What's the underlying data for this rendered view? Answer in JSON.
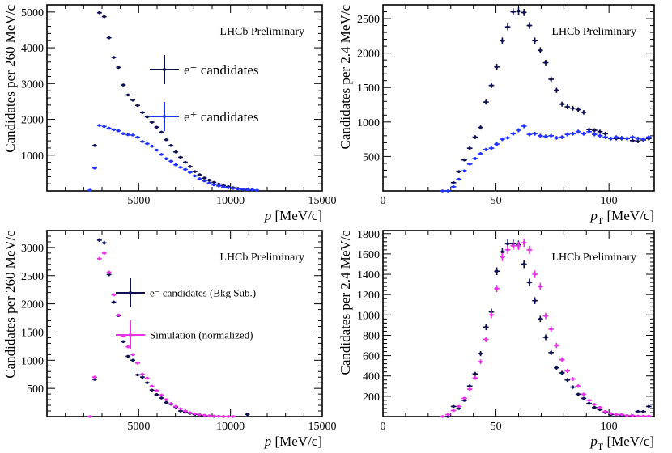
{
  "colors": {
    "navy": "#0f1150",
    "blue": "#2132ff",
    "magenta": "#e633e6"
  },
  "chart_data": [
    {
      "type": "scatter",
      "title": "",
      "annotation": "LHCb Preliminary",
      "xlabel": "p",
      "xunit": " [MeV/c]",
      "ylabel": "Candidates per 260 MeV/c",
      "xlim": [
        0,
        15000
      ],
      "ylim": [
        0,
        5200
      ],
      "xticks": [
        5000,
        10000,
        15000
      ],
      "yticks": [
        1000,
        2000,
        3000,
        4000,
        5000
      ],
      "legend": {
        "position": "top-right",
        "size": "large"
      },
      "series": [
        {
          "name": "e⁻ candidates",
          "color": "#0f1150",
          "x": [
            2600,
            2860,
            3120,
            3380,
            3640,
            3900,
            4160,
            4420,
            4680,
            4940,
            5200,
            5460,
            5720,
            5980,
            6240,
            6500,
            6760,
            7020,
            7280,
            7540,
            7800,
            8060,
            8320,
            8580,
            8840,
            9100,
            9360,
            9620,
            9880,
            10140,
            10400,
            10660,
            10920,
            11180
          ],
          "y": [
            1270,
            4980,
            4870,
            4280,
            3730,
            3450,
            2960,
            2680,
            2540,
            2390,
            2190,
            2070,
            1920,
            1780,
            1640,
            1430,
            1270,
            1090,
            940,
            800,
            680,
            540,
            450,
            360,
            300,
            240,
            190,
            150,
            120,
            90,
            70,
            50,
            40,
            30
          ]
        },
        {
          "name": "e⁺ candidates",
          "color": "#2132ff",
          "x": [
            2340,
            2600,
            2860,
            3120,
            3380,
            3640,
            3900,
            4160,
            4420,
            4680,
            4940,
            5200,
            5460,
            5720,
            5980,
            6240,
            6500,
            6760,
            7020,
            7280,
            7540,
            7800,
            8060,
            8320,
            8580,
            8840,
            9100,
            9360,
            9620,
            9880,
            10140,
            10400,
            10660,
            10920,
            11180,
            11440
          ],
          "y": [
            20,
            640,
            1830,
            1800,
            1750,
            1710,
            1680,
            1600,
            1570,
            1560,
            1500,
            1380,
            1320,
            1250,
            1140,
            1020,
            900,
            830,
            730,
            660,
            600,
            520,
            420,
            340,
            280,
            220,
            170,
            140,
            110,
            90,
            70,
            55,
            45,
            35,
            30,
            20
          ]
        }
      ]
    },
    {
      "type": "scatter",
      "title": "",
      "annotation": "LHCb Preliminary",
      "xlabel": "p",
      "xsub": "T",
      "xunit": " [MeV/c]",
      "ylabel": "Candidates per 2.4 MeV/c",
      "xlim": [
        0,
        120
      ],
      "ylim": [
        0,
        2700
      ],
      "xticks": [
        0,
        50,
        100
      ],
      "yticks": [
        500,
        1000,
        1500,
        2000,
        2500
      ],
      "series": [
        {
          "name": "e⁻ candidates",
          "color": "#0f1150",
          "x": [
            28.8,
            31.2,
            33.6,
            36,
            38.4,
            40.8,
            43.2,
            45.6,
            48,
            50.4,
            52.8,
            55.2,
            57.6,
            60,
            62.4,
            64.8,
            67.2,
            69.6,
            72,
            74.4,
            76.8,
            79.2,
            81.6,
            84,
            86.4,
            88.8,
            91.2,
            93.6,
            96,
            98.4,
            100.8,
            103.2,
            105.6,
            108,
            110.4,
            112.8,
            115.2,
            117.6
          ],
          "y": [
            0,
            120,
            280,
            450,
            620,
            780,
            920,
            1290,
            1530,
            1800,
            2180,
            2380,
            2600,
            2610,
            2590,
            2400,
            2180,
            2040,
            1860,
            1620,
            1460,
            1260,
            1220,
            1200,
            1180,
            1140,
            890,
            880,
            860,
            830,
            760,
            760,
            760,
            760,
            730,
            720,
            740,
            760
          ]
        },
        {
          "name": "e⁺ candidates",
          "color": "#2132ff",
          "x": [
            26.4,
            28.8,
            31.2,
            33.6,
            36,
            38.4,
            40.8,
            43.2,
            45.6,
            48,
            50.4,
            52.8,
            55.2,
            57.6,
            60,
            62.4,
            64.8,
            67.2,
            69.6,
            72,
            74.4,
            76.8,
            79.2,
            81.6,
            84,
            86.4,
            88.8,
            91.2,
            93.6,
            96,
            98.4,
            100.8,
            103.2,
            105.6,
            108,
            110.4,
            112.8,
            115.2,
            117.6
          ],
          "y": [
            0,
            0,
            60,
            170,
            290,
            390,
            470,
            540,
            600,
            620,
            680,
            750,
            770,
            830,
            880,
            940,
            820,
            830,
            800,
            790,
            800,
            770,
            780,
            820,
            830,
            860,
            830,
            860,
            820,
            800,
            780,
            760,
            780,
            770,
            760,
            780,
            760,
            750,
            780
          ]
        }
      ]
    },
    {
      "type": "scatter",
      "title": "",
      "annotation": "LHCb Preliminary",
      "xlabel": "p",
      "xunit": " [MeV/c]",
      "ylabel": "Candidates per 260 MeV/c",
      "xlim": [
        0,
        15000
      ],
      "ylim": [
        0,
        3300
      ],
      "xticks": [
        5000,
        10000,
        15000
      ],
      "yticks": [
        500,
        1000,
        1500,
        2000,
        2500,
        3000
      ],
      "legend": {
        "position": "top-right",
        "size": "small"
      },
      "series": [
        {
          "name": "e⁻ candidates (Bkg Sub.)",
          "color": "#0f1150",
          "x": [
            2600,
            2860,
            3120,
            3380,
            3640,
            3900,
            4160,
            4420,
            4680,
            4940,
            5200,
            5460,
            5720,
            5980,
            6240,
            6500,
            6760,
            7020,
            7280,
            7540,
            7800,
            8060,
            8320,
            8580,
            8840,
            9100,
            9360,
            9620,
            10920
          ],
          "y": [
            660,
            3130,
            3080,
            2520,
            2030,
            1790,
            1330,
            1070,
            1000,
            740,
            700,
            600,
            470,
            390,
            330,
            250,
            220,
            170,
            100,
            80,
            60,
            40,
            20,
            15,
            10,
            5,
            5,
            0,
            40
          ]
        },
        {
          "name": "Simulation (normalized)",
          "color": "#e633e6",
          "x": [
            2340,
            2600,
            2860,
            3120,
            3380,
            3640,
            3900,
            4160,
            4420,
            4680,
            4940,
            5200,
            5460,
            5720,
            5980,
            6240,
            6500,
            6760,
            7020,
            7280,
            7540,
            7800,
            8060,
            8320,
            8580,
            8840,
            9100,
            9360,
            9620,
            9880,
            10140
          ],
          "y": [
            0,
            700,
            2800,
            2900,
            2560,
            2160,
            1800,
            1430,
            1240,
            1100,
            950,
            750,
            680,
            540,
            460,
            380,
            300,
            230,
            180,
            140,
            100,
            70,
            50,
            35,
            25,
            15,
            10,
            5,
            3,
            2,
            1
          ]
        }
      ]
    },
    {
      "type": "scatter",
      "title": "",
      "annotation": "LHCb Preliminary",
      "xlabel": "p",
      "xsub": "T",
      "xunit": " [MeV/c]",
      "ylabel": "Candidates per 2.4 MeV/c",
      "xlim": [
        0,
        120
      ],
      "ylim": [
        0,
        1830
      ],
      "xticks": [
        0,
        50,
        100
      ],
      "yticks": [
        200,
        400,
        600,
        800,
        1000,
        1200,
        1400,
        1600,
        1800
      ],
      "series": [
        {
          "name": "e⁻ candidates (Bkg Sub.)",
          "color": "#0f1150",
          "x": [
            28.8,
            31.2,
            33.6,
            36,
            38.4,
            40.8,
            43.2,
            45.6,
            48,
            50.4,
            52.8,
            55.2,
            57.6,
            60,
            62.4,
            64.8,
            67.2,
            69.6,
            72,
            74.4,
            76.8,
            79.2,
            81.6,
            84,
            86.4,
            88.8,
            91.2,
            93.6,
            96,
            98.4,
            100.8,
            103.2,
            105.6,
            108,
            110.4,
            112.8,
            115.2,
            117.6
          ],
          "y": [
            0,
            100,
            80,
            160,
            300,
            420,
            620,
            880,
            1030,
            1430,
            1620,
            1700,
            1700,
            1690,
            1500,
            1320,
            1140,
            960,
            780,
            630,
            480,
            430,
            360,
            290,
            220,
            180,
            130,
            90,
            70,
            40,
            20,
            20,
            15,
            10,
            10,
            50,
            50,
            100
          ]
        },
        {
          "name": "Simulation (normalized)",
          "color": "#e633e6",
          "x": [
            26.4,
            28.8,
            31.2,
            33.6,
            36,
            38.4,
            40.8,
            43.2,
            45.6,
            48,
            50.4,
            52.8,
            55.2,
            57.6,
            60,
            62.4,
            64.8,
            67.2,
            69.6,
            72,
            74.4,
            76.8,
            79.2,
            81.6,
            84,
            86.4,
            88.8,
            91.2,
            93.6,
            96,
            98.4,
            100.8,
            103.2,
            105.6,
            108,
            110.4,
            112.8,
            115.2,
            117.6
          ],
          "y": [
            0,
            20,
            60,
            100,
            180,
            270,
            380,
            540,
            760,
            1000,
            1260,
            1570,
            1640,
            1680,
            1680,
            1710,
            1640,
            1400,
            1280,
            990,
            860,
            700,
            560,
            450,
            370,
            300,
            220,
            160,
            120,
            90,
            50,
            30,
            20,
            20,
            10,
            10,
            5,
            5,
            5
          ]
        }
      ]
    }
  ]
}
